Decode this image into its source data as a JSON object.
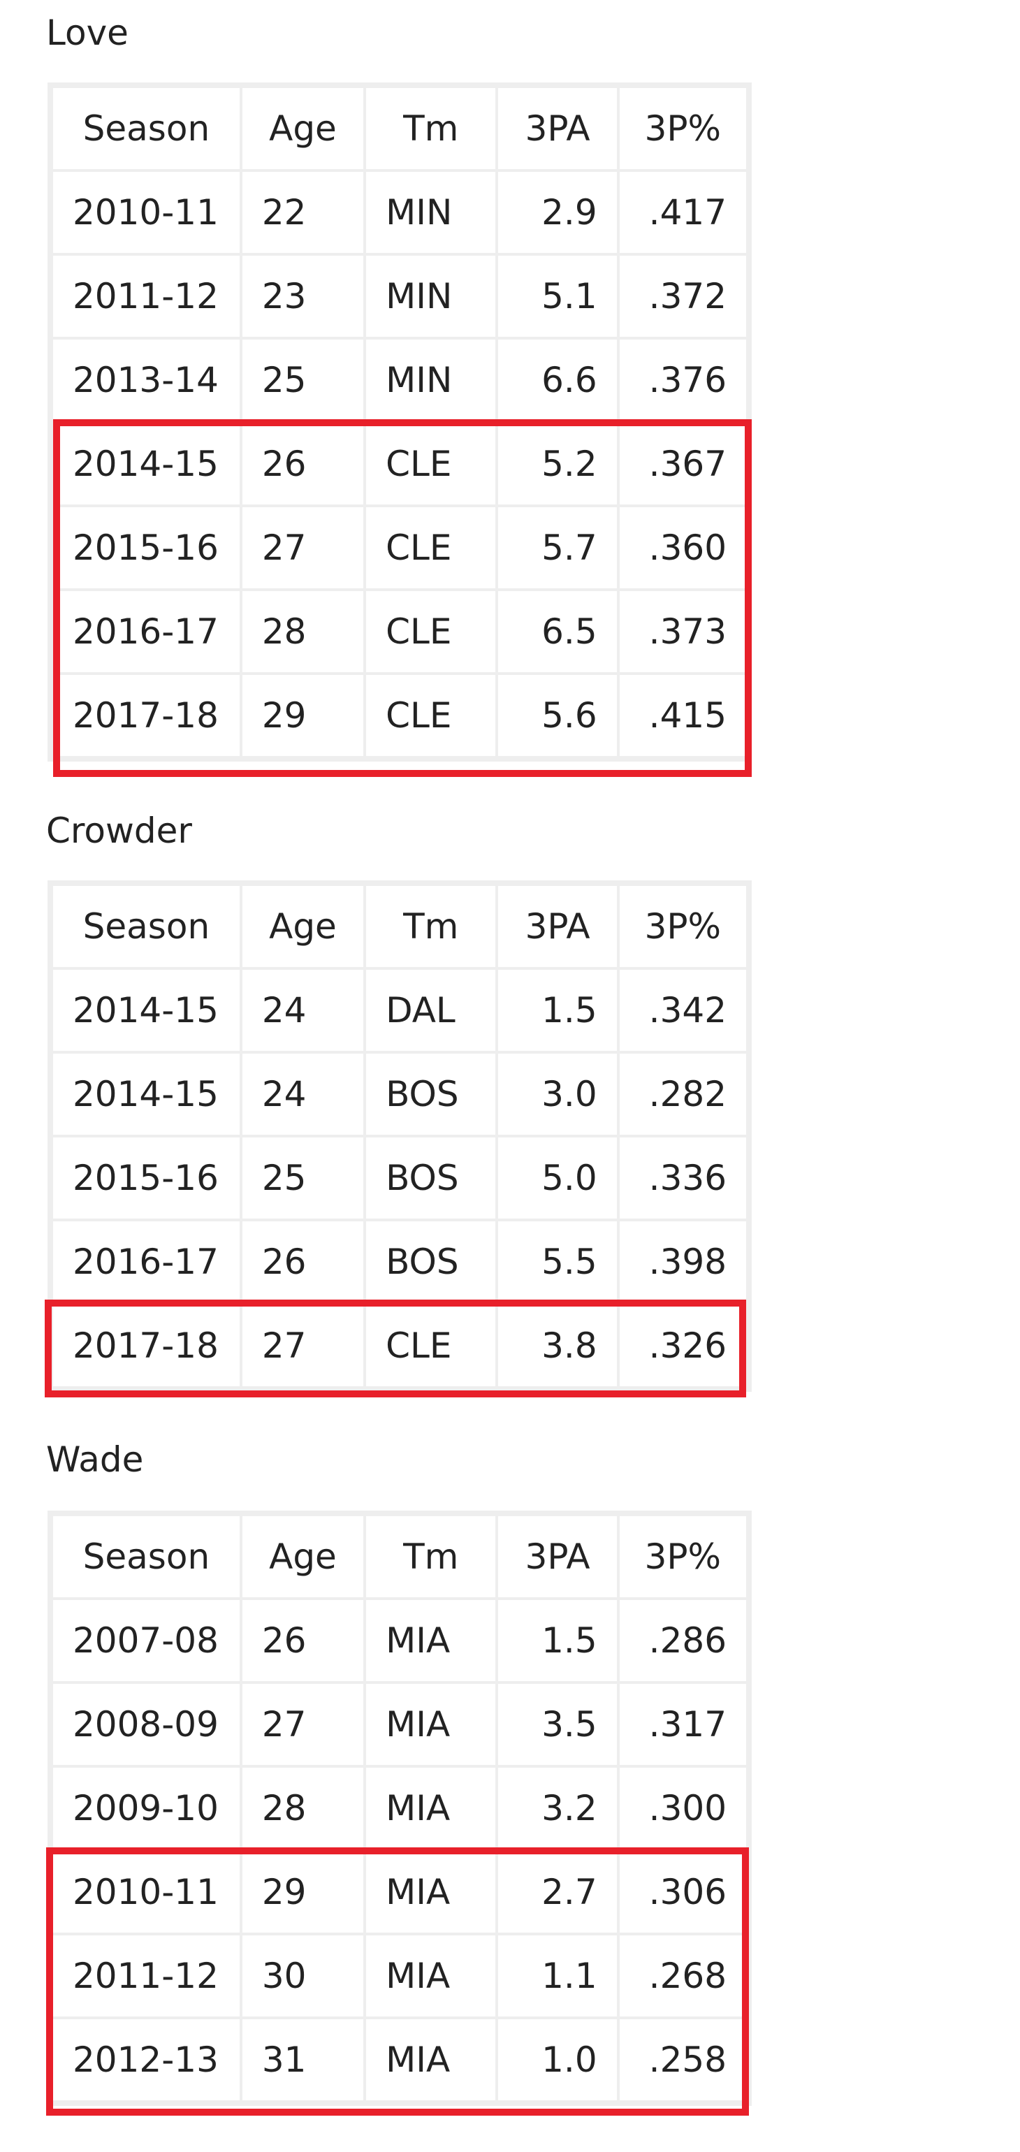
{
  "columns": [
    "Season",
    "Age",
    "Tm",
    "3PA",
    "3P%"
  ],
  "tables": [
    {
      "player": "Love",
      "rows": [
        [
          "2010-11",
          "22",
          "MIN",
          "2.9",
          ".417"
        ],
        [
          "2011-12",
          "23",
          "MIN",
          "5.1",
          ".372"
        ],
        [
          "2013-14",
          "25",
          "MIN",
          "6.6",
          ".376"
        ],
        [
          "2014-15",
          "26",
          "CLE",
          "5.2",
          ".367"
        ],
        [
          "2015-16",
          "27",
          "CLE",
          "5.7",
          ".360"
        ],
        [
          "2016-17",
          "28",
          "CLE",
          "6.5",
          ".373"
        ],
        [
          "2017-18",
          "29",
          "CLE",
          "5.6",
          ".415"
        ]
      ]
    },
    {
      "player": "Crowder",
      "rows": [
        [
          "2014-15",
          "24",
          "DAL",
          "1.5",
          ".342"
        ],
        [
          "2014-15",
          "24",
          "BOS",
          "3.0",
          ".282"
        ],
        [
          "2015-16",
          "25",
          "BOS",
          "5.0",
          ".336"
        ],
        [
          "2016-17",
          "26",
          "BOS",
          "5.5",
          ".398"
        ],
        [
          "2017-18",
          "27",
          "CLE",
          "3.8",
          ".326"
        ]
      ]
    },
    {
      "player": "Wade",
      "rows": [
        [
          "2007-08",
          "26",
          "MIA",
          "1.5",
          ".286"
        ],
        [
          "2008-09",
          "27",
          "MIA",
          "3.5",
          ".317"
        ],
        [
          "2009-10",
          "28",
          "MIA",
          "3.2",
          ".300"
        ],
        [
          "2010-11",
          "29",
          "MIA",
          "2.7",
          ".306"
        ],
        [
          "2011-12",
          "30",
          "MIA",
          "1.1",
          ".268"
        ],
        [
          "2012-13",
          "31",
          "MIA",
          "1.0",
          ".258"
        ]
      ]
    }
  ],
  "highlight_color": "#e8202a",
  "table_border_color": "#eeeeee"
}
